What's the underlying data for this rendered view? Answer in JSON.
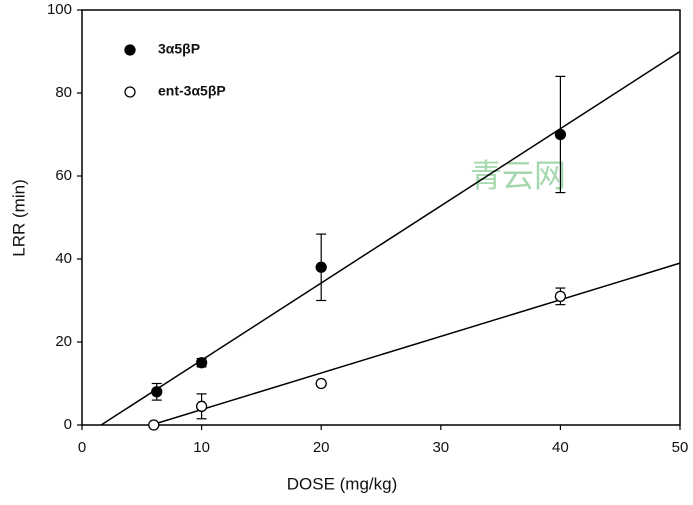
{
  "chart_data": {
    "type": "scatter",
    "xlabel": "DOSE (mg/kg)",
    "ylabel": "LRR (min)",
    "xlim": [
      0,
      50
    ],
    "ylim": [
      0,
      100
    ],
    "xticks": [
      0,
      10,
      20,
      30,
      40,
      50
    ],
    "yticks": [
      0,
      20,
      40,
      60,
      80,
      100
    ],
    "legend": "upper left",
    "annotation": "青云网",
    "series": [
      {
        "name": "3α5βP",
        "marker": "filled",
        "color": "#000000",
        "x": [
          6.25,
          10,
          20,
          40
        ],
        "values": [
          8,
          15,
          38,
          70
        ],
        "errors": [
          2,
          1,
          8,
          14
        ]
      },
      {
        "name": "ent-3α5βP",
        "marker": "open",
        "color": "#000000",
        "x": [
          6,
          10,
          20,
          40
        ],
        "values": [
          0,
          4.5,
          10,
          31
        ],
        "errors": [
          0,
          3,
          0.5,
          2
        ]
      }
    ],
    "fit_lines": [
      {
        "x": [
          1.6,
          50
        ],
        "values": [
          0,
          90
        ]
      },
      {
        "x": [
          5.8,
          50
        ],
        "values": [
          0,
          39
        ]
      }
    ]
  }
}
